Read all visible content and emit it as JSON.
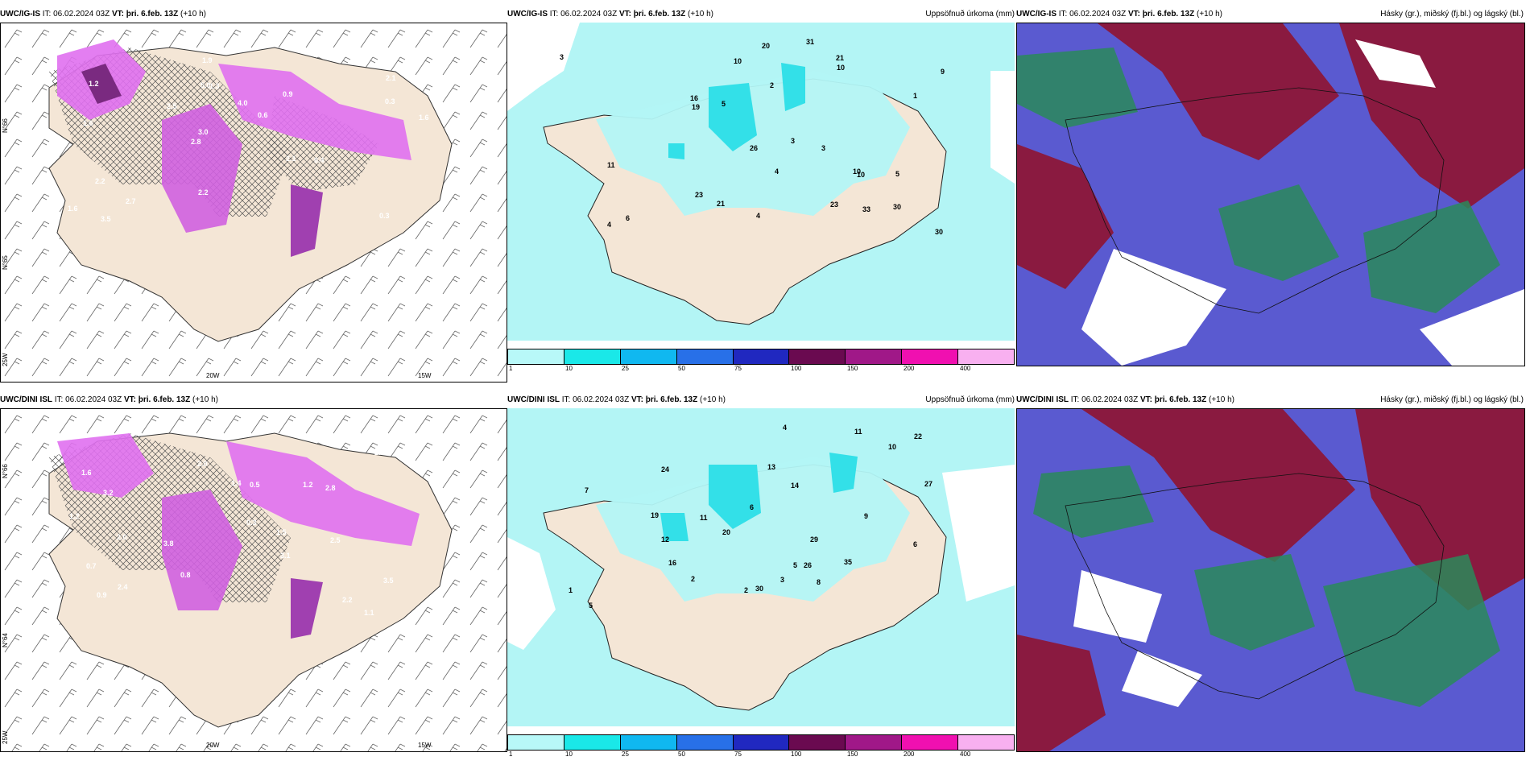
{
  "colors": {
    "land": "#f4e6d6",
    "precip_light": "#b3f5f5",
    "precip_mid": "#33e0e8",
    "snow_pink": "#e070f0",
    "snow_dark": "#7a2a80",
    "cloud_high": "#8a1a40",
    "cloud_mid": "#5a5ad0",
    "cloud_low": "#2a8a5a"
  },
  "rows": [
    {
      "panels": [
        {
          "model": "UWC/IG-IS",
          "it": "IT: 06.02.2024 03Z",
          "vt": "VT: þri. 6.feb. 13Z",
          "lead": "(+10 h)",
          "right": "",
          "lat_labels": [
            "N°66",
            "N°65",
            "N°64"
          ],
          "lon_labels": [
            "20W",
            "15W"
          ],
          "corner": "25W",
          "values": [
            "0.3",
            "1.6",
            "2.1",
            "2.8",
            "0.9",
            "3.5",
            "5.0",
            "4.0",
            "2.2",
            "2.5",
            "1.6",
            "2.7",
            "1.3",
            "0.6",
            "0.4",
            "1.2",
            "1.9",
            "1.6",
            "2.1",
            "0.3",
            "3.0",
            "2.2"
          ]
        },
        {
          "model": "UWC/IG-IS",
          "it": "IT: 06.02.2024 03Z",
          "vt": "VT: þri. 6.feb. 13Z",
          "lead": "(+10 h)",
          "right": "Uppsöfnuð úrkoma (mm)",
          "values": [
            "4",
            "5",
            "3",
            "4",
            "10",
            "31",
            "30",
            "21",
            "33",
            "23",
            "30",
            "19",
            "21",
            "20",
            "23",
            "16",
            "10",
            "11",
            "26",
            "9",
            "3",
            "6",
            "4",
            "3",
            "10",
            "10",
            "5",
            "2",
            "1"
          ]
        },
        {
          "model": "UWC/IG-IS",
          "it": "IT: 06.02.2024 03Z",
          "vt": "VT: þri. 6.feb. 13Z",
          "lead": "(+10 h)",
          "right": "Hásky (gr.), miðský (fj.bl.) og lágský (bl.)"
        }
      ]
    },
    {
      "panels": [
        {
          "model": "UWC/DINI ISL",
          "it": "IT: 06.02.2024 03Z",
          "vt": "VT: þri. 6.feb. 13Z",
          "lead": "(+10 h)",
          "right": "",
          "lat_labels": [
            "N°66",
            "N°65",
            "N°64"
          ],
          "lon_labels": [
            "20W",
            "15W"
          ],
          "corner": "25W",
          "values": [
            "1.1",
            "2.0",
            "3.1",
            "1.6",
            "3.5",
            "3.2",
            "2.4",
            "3.8",
            "2.8",
            "1.4",
            "1.2",
            "2.2",
            "0.8",
            "2.0",
            "1.5",
            "0.7",
            "2.5",
            "0.3",
            "1.2",
            "0.9",
            "2.2",
            "0.5"
          ]
        },
        {
          "model": "UWC/DINI ISL",
          "it": "IT: 06.02.2024 03Z",
          "vt": "VT: þri. 6.feb. 13Z",
          "lead": "(+10 h)",
          "right": "Uppsöfnuð úrkoma (mm)",
          "values": [
            "4",
            "6",
            "8",
            "5",
            "11",
            "29",
            "30",
            "22",
            "35",
            "26",
            "20",
            "19",
            "16",
            "24",
            "13",
            "10",
            "9",
            "27",
            "14",
            "12",
            "11",
            "6",
            "5",
            "2",
            "7",
            "3",
            "1",
            "2"
          ]
        },
        {
          "model": "UWC/DINI ISL",
          "it": "IT: 06.02.2024 03Z",
          "vt": "VT: þri. 6.feb. 13Z",
          "lead": "(+10 h)",
          "right": "Hásky (gr.), miðský (fj.bl.) og lágský (bl.)"
        }
      ]
    }
  ],
  "colorbar": {
    "labels": [
      "1",
      "10",
      "25",
      "50",
      "75",
      "100",
      "150",
      "200",
      "400"
    ],
    "colors": [
      "#b8f8f8",
      "#1ae8e8",
      "#10b8f0",
      "#2870e8",
      "#2028c0",
      "#6a0a50",
      "#a01888",
      "#f010b0",
      "#f8b0f0"
    ]
  }
}
